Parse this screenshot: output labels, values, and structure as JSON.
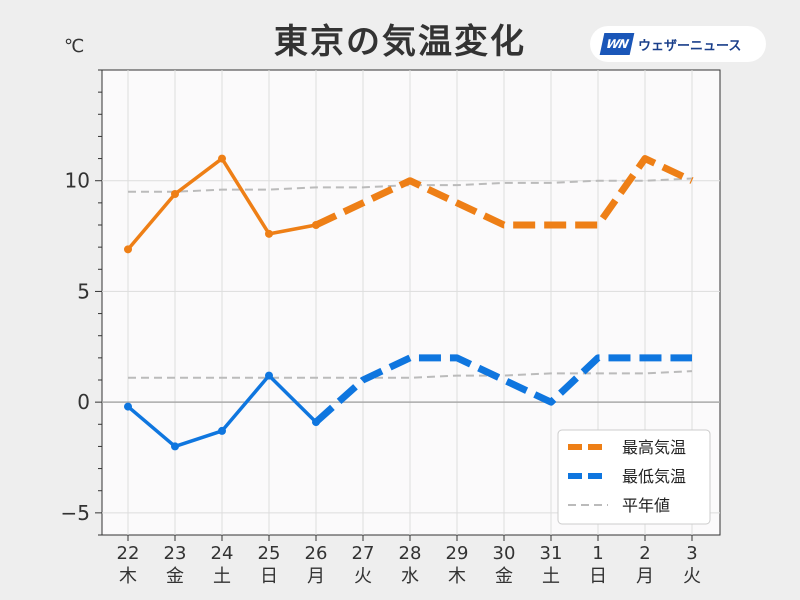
{
  "header": {
    "title": "東京の気温変化",
    "unit": "℃",
    "brand_logo": "WN",
    "brand_text": "ウェザーニュース"
  },
  "colors": {
    "max": "#ee7f16",
    "min": "#0f76df",
    "normal": "#bbbbbb",
    "saturday": "#3a8ed8",
    "sunday": "#d8202a",
    "weekday": "#333333"
  },
  "chart_data": {
    "type": "line",
    "categories": [
      "22",
      "23",
      "24",
      "25",
      "26",
      "27",
      "28",
      "29",
      "30",
      "31",
      "1",
      "2",
      "3"
    ],
    "weekdays": [
      "木",
      "金",
      "土",
      "日",
      "月",
      "火",
      "水",
      "木",
      "金",
      "土",
      "日",
      "月",
      "火"
    ],
    "day_types": [
      "weekday",
      "weekday",
      "saturday",
      "sunday",
      "weekday",
      "weekday",
      "weekday",
      "weekday",
      "weekday",
      "saturday",
      "sunday",
      "weekday",
      "weekday"
    ],
    "ylim": [
      -6,
      15
    ],
    "yticks": [
      -5,
      0,
      5,
      10
    ],
    "ytick_labels": [
      "−5",
      "0",
      "5",
      "10"
    ],
    "observed_count": 5,
    "series": [
      {
        "name": "最高気温",
        "key": "max",
        "values": [
          6.9,
          9.4,
          11.0,
          7.6,
          8.0,
          9.0,
          10.0,
          9.0,
          8.0,
          8.0,
          8.0,
          11.0,
          10.0
        ]
      },
      {
        "name": "最低気温",
        "key": "min",
        "values": [
          -0.2,
          -2.0,
          -1.3,
          1.2,
          -0.9,
          1.0,
          2.0,
          2.0,
          1.0,
          0.0,
          2.0,
          2.0,
          2.0
        ]
      },
      {
        "name": "平年値",
        "key": "normal",
        "values": [
          9.5,
          9.5,
          9.6,
          9.6,
          9.7,
          9.7,
          9.8,
          9.8,
          9.9,
          9.9,
          10.0,
          10.0,
          10.1
        ],
        "values_low": [
          1.1,
          1.1,
          1.1,
          1.1,
          1.1,
          1.1,
          1.1,
          1.2,
          1.2,
          1.3,
          1.3,
          1.3,
          1.4
        ]
      }
    ],
    "grid": true,
    "legend": "bottom-right"
  }
}
